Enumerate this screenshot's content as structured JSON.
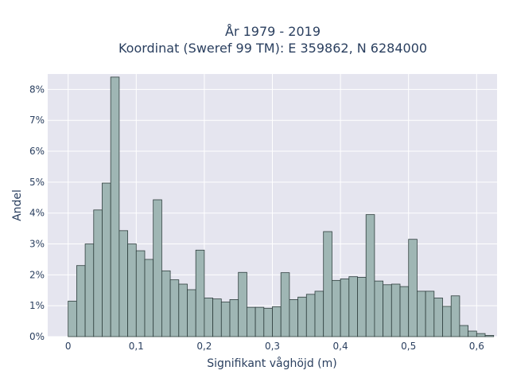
{
  "chart_data": {
    "type": "bar",
    "title_line1": "År 1979 - 2019",
    "title_line2": "Koordinat (Sweref 99 TM): E 359862, N 6284000",
    "xlabel": "Signifikant våghöjd (m)",
    "ylabel": "Andel",
    "xlim": [
      -0.03,
      0.63
    ],
    "ylim": [
      0,
      8.5
    ],
    "bin_start": 0.0,
    "bin_width": 0.0125,
    "x_ticks": [
      {
        "value": 0,
        "label": "0"
      },
      {
        "value": 0.1,
        "label": "0,1"
      },
      {
        "value": 0.2,
        "label": "0,2"
      },
      {
        "value": 0.3,
        "label": "0,3"
      },
      {
        "value": 0.4,
        "label": "0,4"
      },
      {
        "value": 0.5,
        "label": "0,5"
      },
      {
        "value": 0.6,
        "label": "0,6"
      }
    ],
    "y_ticks": [
      {
        "value": 0,
        "label": "0%"
      },
      {
        "value": 1,
        "label": "1%"
      },
      {
        "value": 2,
        "label": "2%"
      },
      {
        "value": 3,
        "label": "3%"
      },
      {
        "value": 4,
        "label": "4%"
      },
      {
        "value": 5,
        "label": "5%"
      },
      {
        "value": 6,
        "label": "6%"
      },
      {
        "value": 7,
        "label": "7%"
      },
      {
        "value": 8,
        "label": "8%"
      }
    ],
    "values": [
      1.15,
      2.3,
      3.0,
      4.1,
      4.97,
      8.4,
      3.43,
      3.0,
      2.78,
      2.5,
      4.43,
      2.13,
      1.84,
      1.7,
      1.52,
      2.8,
      1.25,
      1.22,
      1.12,
      1.2,
      2.08,
      0.95,
      0.95,
      0.92,
      0.97,
      2.07,
      1.2,
      1.28,
      1.37,
      1.47,
      3.4,
      1.82,
      1.87,
      1.94,
      1.92,
      3.95,
      1.8,
      1.68,
      1.7,
      1.62,
      3.15,
      1.47,
      1.47,
      1.25,
      0.98,
      1.32,
      0.36,
      0.18,
      0.1,
      0.04
    ],
    "grid": true,
    "colors": {
      "plot_bg": "#e5e5ef",
      "grid": "#ffffff",
      "bar_fill": "#9fb6b4",
      "bar_stroke": "#2f3f3e",
      "text": "#2a3f5f"
    }
  }
}
